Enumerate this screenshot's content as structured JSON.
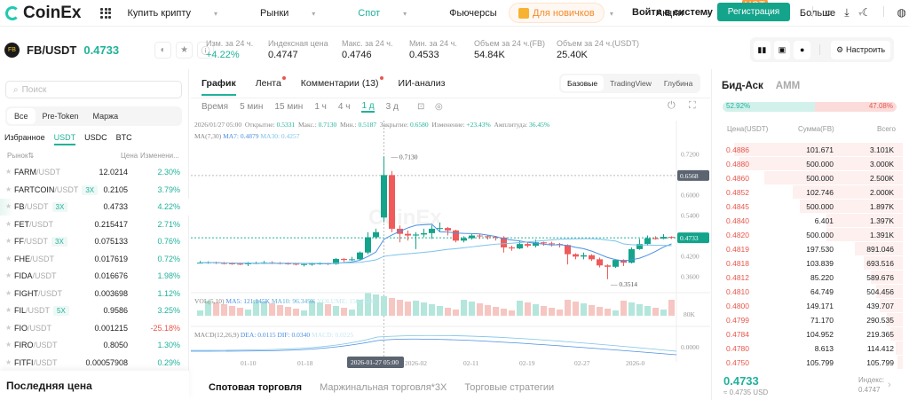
{
  "header": {
    "brand": "CoinEx",
    "nav": [
      {
        "label": "Купить крипту",
        "active": false
      },
      {
        "label": "Рынки",
        "active": false
      },
      {
        "label": "Спот",
        "active": true
      },
      {
        "label": "Фьючерсы",
        "active": false
      },
      {
        "label": "Earn",
        "active": false
      },
      {
        "label": "Акции",
        "active": false,
        "badge": "HOT"
      },
      {
        "label": "Больше",
        "active": false
      }
    ],
    "newbie": "Для новичков",
    "login": "Войти в систему",
    "register": "Регистрация"
  },
  "ticker": {
    "pair": "FB/USDT",
    "price": "0.4733",
    "stats": [
      {
        "label": "Изм. за 24 ч.",
        "value": "+4.22%",
        "up": true
      },
      {
        "label": "Индексная цена",
        "value": "0.4747"
      },
      {
        "label": "Макс. за 24 ч.",
        "value": "0.4746"
      },
      {
        "label": "Мин. за 24 ч.",
        "value": "0.4533"
      },
      {
        "label": "Объем за 24 ч.(FB)",
        "value": "54.84K"
      },
      {
        "label": "Объем за 24 ч.(USDT)",
        "value": "25.40K"
      }
    ],
    "customize": "Настроить"
  },
  "left": {
    "search_placeholder": "Поиск",
    "segments": [
      "Все",
      "Pre-Token",
      "Маржа"
    ],
    "quote_tabs": [
      "Избранное",
      "USDT",
      "USDC",
      "BTC"
    ],
    "head": {
      "market": "Рынок",
      "price": "Цена",
      "change": "Изменени..."
    },
    "rows": [
      {
        "base": "FARM",
        "q": "/USDT",
        "lev": "",
        "price": "12.0214",
        "chg": "2.30%",
        "up": true
      },
      {
        "base": "FARTCOIN",
        "q": "/USDT",
        "lev": "3X",
        "price": "0.2105",
        "chg": "3.79%",
        "up": true
      },
      {
        "base": "FB",
        "q": "/USDT",
        "lev": "3X",
        "price": "0.4733",
        "chg": "4.22%",
        "up": true
      },
      {
        "base": "FET",
        "q": "/USDT",
        "lev": "",
        "price": "0.215417",
        "chg": "2.71%",
        "up": true
      },
      {
        "base": "FF",
        "q": "/USDT",
        "lev": "3X",
        "price": "0.075133",
        "chg": "0.76%",
        "up": true
      },
      {
        "base": "FHE",
        "q": "/USDT",
        "lev": "",
        "price": "0.017619",
        "chg": "0.72%",
        "up": true
      },
      {
        "base": "FIDA",
        "q": "/USDT",
        "lev": "",
        "price": "0.016676",
        "chg": "1.98%",
        "up": true
      },
      {
        "base": "FIGHT",
        "q": "/USDT",
        "lev": "",
        "price": "0.003698",
        "chg": "1.12%",
        "up": true
      },
      {
        "base": "FIL",
        "q": "/USDT",
        "lev": "5X",
        "price": "0.9586",
        "chg": "3.25%",
        "up": true
      },
      {
        "base": "FIO",
        "q": "/USDT",
        "lev": "",
        "price": "0.001215",
        "chg": "-25.18%",
        "up": false
      },
      {
        "base": "FIRO",
        "q": "/USDT",
        "lev": "",
        "price": "0.8050",
        "chg": "1.30%",
        "up": true
      },
      {
        "base": "FITFI",
        "q": "/USDT",
        "lev": "",
        "price": "0.00057908",
        "chg": "0.29%",
        "up": true
      }
    ],
    "last_price_title": "Последняя цена"
  },
  "center": {
    "tabs": [
      "График",
      "Лента",
      "Комментарии (13)",
      "ИИ-анализ"
    ],
    "views": [
      "Базовые",
      "TradingView",
      "Глубина"
    ],
    "timeframes": [
      "Время",
      "5 мин",
      "15 мин",
      "1 ч",
      "4 ч",
      "1 д",
      "3 д"
    ],
    "ohlc": {
      "date": "2026/01/27 05:00",
      "open_l": "Открытие:",
      "open": "0.5331",
      "high_l": "Макс.:",
      "high": "0.7130",
      "low_l": "Мин.:",
      "low": "0.5187",
      "close_l": "Закрытие:",
      "close": "0.6580",
      "chg_l": "Изменение:",
      "chg": "+23.43%",
      "amp_l": "Амплитуда:",
      "amp": "36.45%"
    },
    "ma": {
      "label": "MA(7,30)",
      "ma7": "MA7: 0.4879",
      "ma30": "MA30: 0.4257"
    },
    "vol": {
      "label": "VOL(5,10)",
      "ma5": "MA5: 121.145K",
      "ma10": "MA10: 96.349K",
      "volume": "VOLUME: 156.252K"
    },
    "macd": {
      "label": "MACD(12,26,9)",
      "dea": "DEA: 0.0115",
      "dif": "DIF: 0.0340",
      "macd": "MACD: 0.0225"
    },
    "bottom_tabs": [
      "Спотовая торговля",
      "Маржинальная торговля*3X",
      "Торговые стратегии"
    ]
  },
  "chart_data": {
    "type": "candlestick",
    "title": "FB/USDT 1д",
    "y_ticks": [
      "0.7200",
      "0.6000",
      "0.5400",
      "0.4200",
      "0.3600"
    ],
    "x_ticks": [
      "01-10",
      "01-18",
      "2026-01-27 05:00",
      "2026-02",
      "02-11",
      "02-19",
      "02-27",
      "2026-0"
    ],
    "marked_high": "0.7130",
    "marked_low": "0.3514",
    "crosshair_price": "0.6568",
    "last_price": "0.4733",
    "vol_axis": "80K",
    "macd_axis": "0.0000",
    "candles": [
      [
        0.4,
        0.4,
        0.405,
        0.398
      ],
      [
        0.4,
        0.401,
        0.404,
        0.397
      ],
      [
        0.401,
        0.399,
        0.403,
        0.396
      ],
      [
        0.399,
        0.398,
        0.402,
        0.395
      ],
      [
        0.398,
        0.397,
        0.401,
        0.394
      ],
      [
        0.397,
        0.396,
        0.4,
        0.393
      ],
      [
        0.396,
        0.398,
        0.402,
        0.39
      ],
      [
        0.398,
        0.399,
        0.403,
        0.396
      ],
      [
        0.399,
        0.401,
        0.405,
        0.396
      ],
      [
        0.401,
        0.399,
        0.404,
        0.396
      ],
      [
        0.399,
        0.398,
        0.402,
        0.395
      ],
      [
        0.398,
        0.397,
        0.401,
        0.394
      ],
      [
        0.397,
        0.395,
        0.399,
        0.392
      ],
      [
        0.395,
        0.396,
        0.398,
        0.389
      ],
      [
        0.396,
        0.397,
        0.4,
        0.391
      ],
      [
        0.397,
        0.398,
        0.401,
        0.394
      ],
      [
        0.398,
        0.396,
        0.4,
        0.393
      ],
      [
        0.396,
        0.411,
        0.414,
        0.394
      ],
      [
        0.411,
        0.408,
        0.414,
        0.402
      ],
      [
        0.408,
        0.41,
        0.417,
        0.405
      ],
      [
        0.41,
        0.43,
        0.433,
        0.408
      ],
      [
        0.43,
        0.475,
        0.49,
        0.425
      ],
      [
        0.475,
        0.49,
        0.5,
        0.47
      ],
      [
        0.533,
        0.658,
        0.713,
        0.519
      ],
      [
        0.658,
        0.5,
        0.67,
        0.49
      ],
      [
        0.5,
        0.485,
        0.51,
        0.46
      ],
      [
        0.485,
        0.48,
        0.495,
        0.465
      ],
      [
        0.48,
        0.483,
        0.49,
        0.44
      ],
      [
        0.483,
        0.487,
        0.5,
        0.475
      ],
      [
        0.487,
        0.5,
        0.51,
        0.47
      ],
      [
        0.5,
        0.502,
        0.518,
        0.49
      ],
      [
        0.502,
        0.495,
        0.505,
        0.48
      ],
      [
        0.495,
        0.465,
        0.497,
        0.46
      ],
      [
        0.465,
        0.472,
        0.478,
        0.46
      ],
      [
        0.472,
        0.48,
        0.484,
        0.468
      ],
      [
        0.48,
        0.478,
        0.485,
        0.47
      ],
      [
        0.478,
        0.476,
        0.48,
        0.468
      ],
      [
        0.476,
        0.474,
        0.479,
        0.465
      ],
      [
        0.474,
        0.445,
        0.478,
        0.43
      ],
      [
        0.445,
        0.442,
        0.45,
        0.435
      ],
      [
        0.442,
        0.455,
        0.465,
        0.44
      ],
      [
        0.455,
        0.45,
        0.46,
        0.445
      ],
      [
        0.45,
        0.46,
        0.468,
        0.445
      ],
      [
        0.46,
        0.457,
        0.462,
        0.45
      ],
      [
        0.457,
        0.455,
        0.462,
        0.448
      ],
      [
        0.455,
        0.452,
        0.458,
        0.445
      ],
      [
        0.452,
        0.425,
        0.454,
        0.395
      ],
      [
        0.425,
        0.418,
        0.428,
        0.41
      ],
      [
        0.418,
        0.422,
        0.43,
        0.41
      ],
      [
        0.422,
        0.41,
        0.425,
        0.405
      ],
      [
        0.41,
        0.392,
        0.415,
        0.386
      ],
      [
        0.392,
        0.388,
        0.395,
        0.3514
      ],
      [
        0.388,
        0.408,
        0.41,
        0.385
      ],
      [
        0.408,
        0.4,
        0.41,
        0.39
      ],
      [
        0.4,
        0.44,
        0.445,
        0.398
      ],
      [
        0.44,
        0.455,
        0.47,
        0.438
      ],
      [
        0.455,
        0.472,
        0.48,
        0.45
      ],
      [
        0.472,
        0.471,
        0.478,
        0.468
      ],
      [
        0.471,
        0.476,
        0.484,
        0.469
      ],
      [
        0.476,
        0.4733,
        0.478,
        0.47
      ]
    ]
  },
  "orderbook": {
    "tabs": [
      "Бид-Аск",
      "AMM"
    ],
    "bid_pct": "52.92%",
    "ask_pct": "47.08%",
    "head": {
      "price": "Цена(USDT)",
      "amount": "Сумма(FB)",
      "total": "Всего"
    },
    "asks": [
      [
        "0.4886",
        "101.671",
        "3.101K",
        0.95
      ],
      [
        "0.4880",
        "500.000",
        "3.000K",
        0.92
      ],
      [
        "0.4860",
        "500.000",
        "2.500K",
        0.78
      ],
      [
        "0.4852",
        "102.746",
        "2.000K",
        0.62
      ],
      [
        "0.4845",
        "500.000",
        "1.897K",
        0.58
      ],
      [
        "0.4840",
        "6.401",
        "1.397K",
        0.43
      ],
      [
        "0.4820",
        "500.000",
        "1.391K",
        0.43
      ],
      [
        "0.4819",
        "197.530",
        "891.046",
        0.27
      ],
      [
        "0.4818",
        "103.839",
        "693.516",
        0.22
      ],
      [
        "0.4812",
        "85.220",
        "589.676",
        0.18
      ],
      [
        "0.4810",
        "64.749",
        "504.456",
        0.15
      ],
      [
        "0.4800",
        "149.171",
        "439.707",
        0.13
      ],
      [
        "0.4799",
        "71.170",
        "290.535",
        0.09
      ],
      [
        "0.4784",
        "104.952",
        "219.365",
        0.07
      ],
      [
        "0.4780",
        "8.613",
        "114.412",
        0.04
      ],
      [
        "0.4750",
        "105.799",
        "105.799",
        0.03
      ]
    ],
    "last": "0.4733",
    "last_usd": "≈ 0.4735 USD",
    "index_label": "Индекс:",
    "index": "0.4747"
  }
}
